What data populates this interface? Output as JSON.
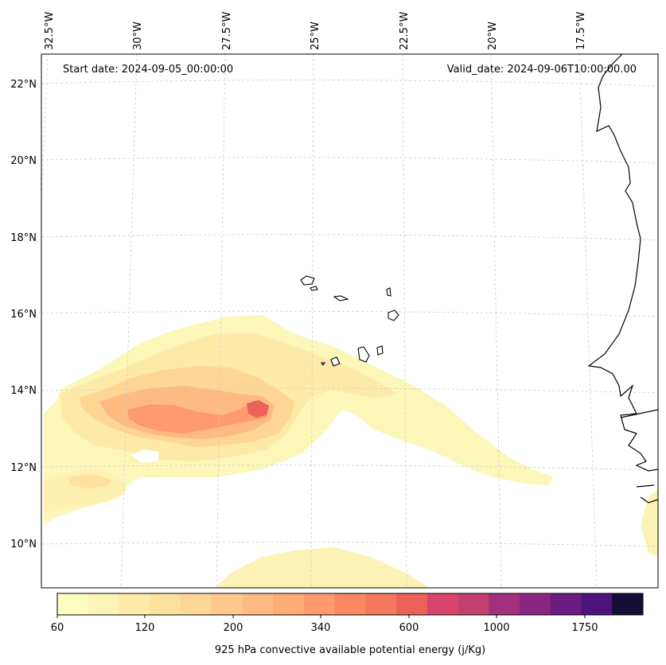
{
  "map": {
    "start_date": "Start date: 2024-09-05_00:00:00",
    "valid_date": "Valid_date: 2024-09-06T10:00:00.00",
    "lon_labels": [
      "32.5°W",
      "30°W",
      "27.5°W",
      "25°W",
      "22.5°W",
      "20°W",
      "17.5°W"
    ],
    "lat_labels": [
      "22°N",
      "20°N",
      "18°N",
      "16°N",
      "14°N",
      "12°N",
      "10°N"
    ],
    "colorbar": {
      "title": "925 hPa convective available potential energy (j/Kg)",
      "tick_labels": [
        "60",
        "120",
        "200",
        "340",
        "600",
        "1000",
        "1750"
      ],
      "level_colors": [
        "#fcfdbf",
        "#fcf4b6",
        "#fdeaa8",
        "#fde19d",
        "#fdd694",
        "#fec98b",
        "#febb81",
        "#feac76",
        "#fe9a6b",
        "#fb8861",
        "#f6785c",
        "#ec6259",
        "#d8456c",
        "#c1406f",
        "#a3307e",
        "#8a2582",
        "#6a1c81",
        "#4e137c",
        "#140e36"
      ],
      "colormap": "magma_r"
    },
    "field_colors": {
      "ocean": "#ffffff",
      "coast": "#000000",
      "grid": "#cccccc"
    }
  }
}
